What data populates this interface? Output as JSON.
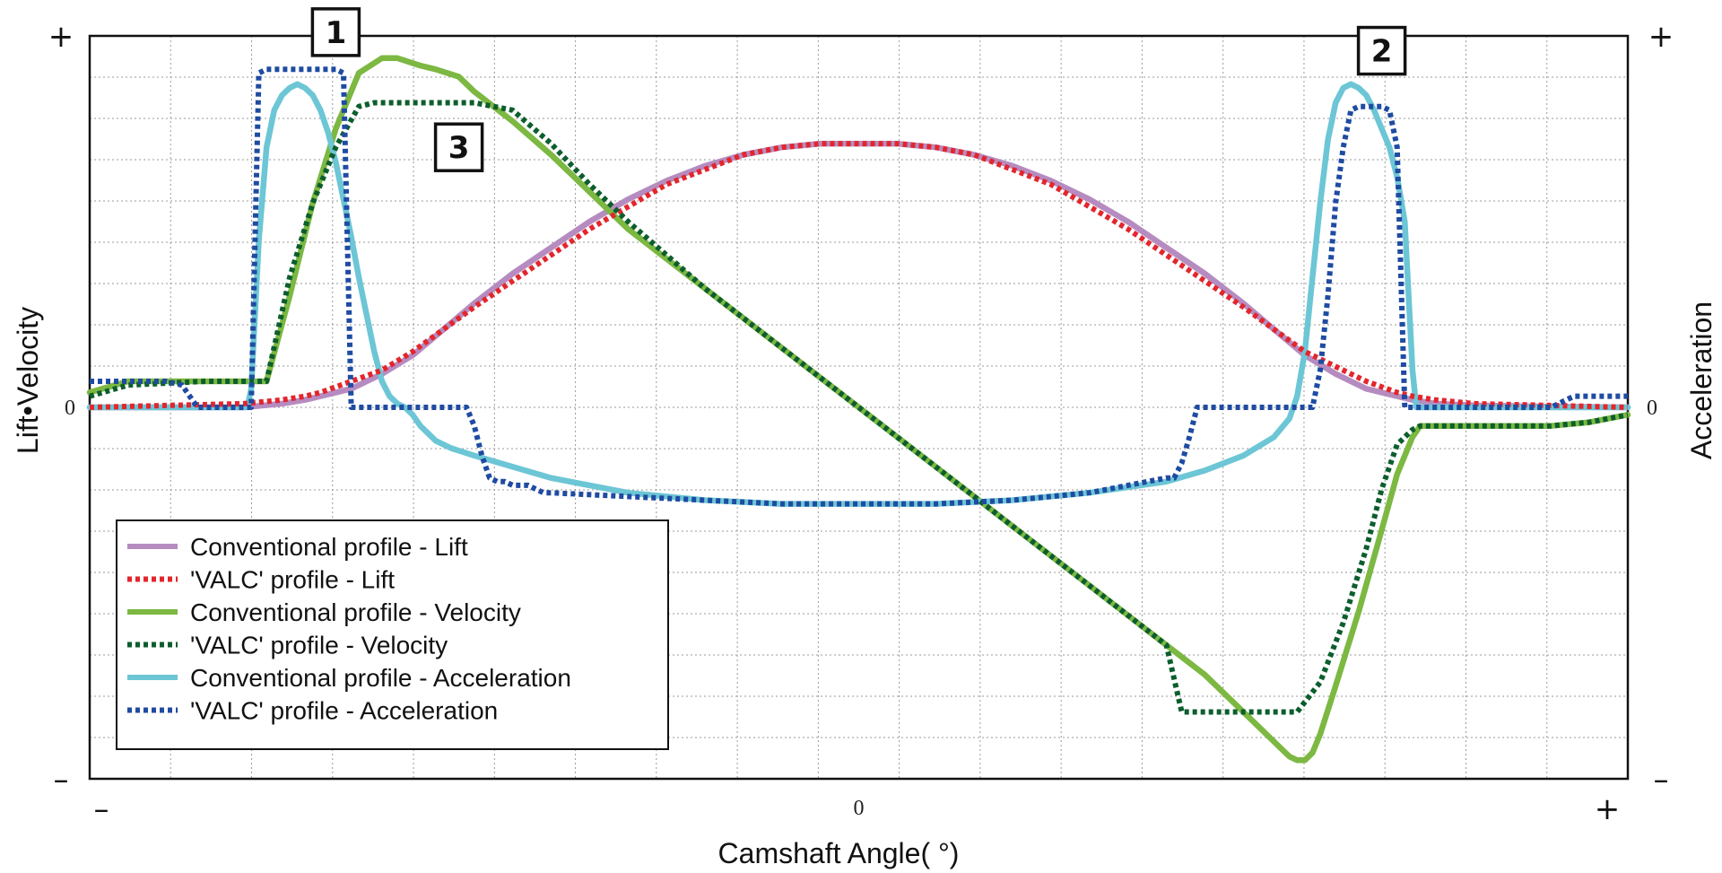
{
  "chart_data": {
    "type": "line",
    "title": "",
    "xlabel": "Camshaft Angle( °)",
    "ylabel_left": "Lift•Velocity",
    "ylabel_right": "Acceleration",
    "x_tick_labels": {
      "min": "–",
      "zero": "0",
      "max": "+"
    },
    "y_left_tick_labels": {
      "min": "–",
      "zero": "0",
      "max": "+"
    },
    "y_right_tick_labels": {
      "min": "–",
      "zero": "0",
      "max": "+"
    },
    "xlim": [
      -100,
      100
    ],
    "ylim": [
      -100,
      100
    ],
    "grid": true,
    "legend_position": "bottom-left",
    "markers": [
      {
        "label": "1",
        "x": -68,
        "y": 101
      },
      {
        "label": "2",
        "x": 68,
        "y": 96
      },
      {
        "label": "3",
        "x": -52,
        "y": 70
      }
    ],
    "series": [
      {
        "name": "Conventional profile - Lift",
        "color": "#b68cc0",
        "style": "solid",
        "x": [
          -100,
          -90,
          -80,
          -75,
          -72,
          -70,
          -66,
          -62,
          -58,
          -54,
          -50,
          -45,
          -40,
          -35,
          -30,
          -25,
          -20,
          -15,
          -10,
          -5,
          0,
          5,
          10,
          15,
          20,
          25,
          30,
          35,
          40,
          45,
          50,
          54,
          58,
          62,
          66,
          70,
          72,
          75,
          80,
          90,
          100
        ],
        "values": [
          0,
          0,
          0,
          1,
          2,
          3,
          5,
          9,
          14,
          21,
          28,
          36,
          43,
          50,
          56,
          61,
          65,
          68,
          70,
          71,
          71,
          71,
          70,
          68,
          65,
          61,
          56,
          50,
          43,
          36,
          28,
          21,
          14,
          9,
          5,
          3,
          2,
          1,
          0.5,
          0.2,
          0
        ]
      },
      {
        "name": "'VALC' profile - Lift",
        "color": "#e3262d",
        "style": "dotted",
        "x": [
          -100,
          -90,
          -80,
          -75,
          -72,
          -70,
          -66,
          -62,
          -58,
          -54,
          -50,
          -45,
          -40,
          -35,
          -30,
          -25,
          -20,
          -15,
          -10,
          -5,
          0,
          5,
          10,
          15,
          20,
          25,
          30,
          35,
          40,
          45,
          50,
          54,
          58,
          62,
          66,
          70,
          72,
          75,
          80,
          90,
          100
        ],
        "values": [
          0,
          0.5,
          1,
          2,
          3,
          4,
          7,
          10,
          15,
          21,
          27,
          34,
          41,
          48,
          54,
          60,
          64,
          68,
          70,
          71,
          71,
          71,
          70,
          68,
          64,
          60,
          54,
          48,
          41,
          34,
          27,
          21,
          15,
          11,
          7,
          4,
          3,
          2,
          1,
          0.5,
          0
        ]
      },
      {
        "name": "Conventional profile - Velocity",
        "color": "#7cb842",
        "style": "solid",
        "x": [
          -100,
          -95,
          -85,
          -80,
          -79,
          -77,
          -74,
          -71,
          -68,
          -65,
          -62,
          -60,
          -57,
          -55,
          -52,
          -50,
          -45,
          -40,
          -35,
          -30,
          -20,
          -10,
          0,
          10,
          20,
          30,
          40,
          45,
          50,
          53,
          55,
          56,
          57,
          58,
          59,
          60,
          62,
          65,
          68,
          70,
          72,
          73,
          74,
          75,
          77,
          80,
          85,
          90,
          95,
          100
        ],
        "values": [
          4,
          7,
          7,
          7,
          7,
          7,
          30,
          55,
          75,
          90,
          94,
          94,
          92,
          91,
          89,
          85,
          77,
          68,
          58,
          48,
          32,
          16,
          0,
          -16,
          -32,
          -48,
          -64,
          -72,
          -82,
          -88,
          -92,
          -94,
          -95,
          -95,
          -93,
          -88,
          -75,
          -55,
          -33,
          -18,
          -8,
          -5,
          -5,
          -5,
          -5,
          -5,
          -5,
          -5,
          -4,
          -2
        ]
      },
      {
        "name": "'VALC' profile - Velocity",
        "color": "#0c5e2d",
        "style": "dotted",
        "x": [
          -100,
          -95,
          -85,
          -80,
          -79,
          -77,
          -74,
          -71,
          -68,
          -65,
          -63,
          -60,
          -55,
          -50,
          -45,
          -40,
          -35,
          -30,
          -20,
          -10,
          0,
          10,
          20,
          30,
          40,
          42,
          50,
          55,
          57,
          60,
          63,
          66,
          68,
          70,
          72,
          73,
          75,
          80,
          85,
          90,
          95,
          100
        ],
        "values": [
          3,
          6,
          7,
          7,
          7,
          7,
          35,
          55,
          70,
          81,
          82,
          82,
          82,
          82,
          80,
          71,
          60,
          50,
          32,
          16,
          0,
          -16,
          -32,
          -48,
          -64,
          -82,
          -82,
          -82,
          -82,
          -74,
          -58,
          -38,
          -22,
          -10,
          -6,
          -5,
          -5,
          -5,
          -5,
          -5,
          -4,
          -2
        ]
      },
      {
        "name": "Conventional profile - Acceleration",
        "color": "#6cc6d5",
        "style": "solid",
        "x": [
          -100,
          -92,
          -85,
          -80,
          -79.5,
          -79,
          -78,
          -77,
          -76,
          -75,
          -74,
          -73,
          -72,
          -71,
          -70,
          -69,
          -68,
          -67,
          -66,
          -65,
          -64,
          -63,
          -62,
          -61,
          -60,
          -59,
          -58,
          -57,
          -56,
          -55,
          -53,
          -50,
          -45,
          -40,
          -30,
          -20,
          -10,
          0,
          10,
          20,
          30,
          40,
          45,
          50,
          54,
          56,
          57,
          58,
          59,
          60,
          61,
          62,
          63,
          64,
          65,
          66,
          67,
          68,
          69,
          70,
          71,
          72,
          72.5,
          73,
          74,
          76,
          80,
          85,
          92,
          100
        ],
        "values": [
          0,
          0,
          0,
          0,
          0,
          5,
          45,
          70,
          80,
          84,
          86,
          87,
          86,
          84,
          80,
          74,
          66,
          56,
          46,
          35,
          25,
          15,
          7,
          3,
          1,
          0,
          -2,
          -5,
          -7,
          -9,
          -11,
          -13,
          -16,
          -19,
          -23,
          -25,
          -26,
          -26,
          -26,
          -25,
          -23,
          -20,
          -17,
          -13,
          -8,
          -3,
          3,
          15,
          35,
          55,
          72,
          82,
          86,
          87,
          86,
          84,
          80,
          75,
          70,
          62,
          50,
          10,
          0,
          0,
          0,
          0,
          0,
          0,
          0,
          0
        ]
      },
      {
        "name": "'VALC' profile - Acceleration",
        "color": "#1f4ba2",
        "style": "dotted",
        "x": [
          -100,
          -90,
          -88,
          -86,
          -82,
          -80,
          -79,
          -78,
          -77,
          -76,
          -75,
          -74,
          -73,
          -72,
          -71,
          -70,
          -69,
          -68,
          -67,
          -66,
          -65,
          -64,
          -63,
          -62,
          -61,
          -60,
          -59,
          -58,
          -57,
          -56,
          -55,
          -54,
          -53,
          -52,
          -51,
          -50,
          -49,
          -48,
          -47,
          -46,
          -45,
          -44,
          -43,
          -42,
          -41,
          -40,
          -30,
          -20,
          -10,
          0,
          10,
          20,
          30,
          40,
          41,
          42,
          43,
          44,
          45,
          46,
          47,
          48,
          49,
          50,
          51,
          52,
          53,
          54,
          55,
          56,
          57,
          58,
          59,
          60,
          61,
          62,
          63,
          64,
          65,
          66,
          67,
          68,
          69,
          70,
          71,
          72,
          73,
          74,
          75,
          80,
          85,
          90,
          92,
          93,
          100
        ],
        "values": [
          7,
          7,
          6,
          0,
          0,
          0,
          0,
          90,
          91,
          91,
          91,
          91,
          91,
          91,
          91,
          91,
          91,
          91,
          90,
          0,
          0,
          0,
          0,
          0,
          0,
          0,
          0,
          0,
          0,
          0,
          0,
          0,
          0,
          0,
          0,
          -5,
          -13,
          -19,
          -20,
          -20,
          -21,
          -21,
          -21,
          -22,
          -23,
          -23,
          -24,
          -25,
          -26,
          -26,
          -26,
          -25,
          -23,
          -19,
          -19,
          -15,
          -8,
          0,
          0,
          0,
          0,
          0,
          0,
          0,
          0,
          0,
          0,
          0,
          0,
          0,
          0,
          0,
          0,
          10,
          30,
          55,
          70,
          80,
          81,
          81,
          81,
          81,
          80,
          70,
          0,
          0,
          0,
          0,
          0,
          0,
          0,
          0,
          2,
          3,
          3
        ]
      }
    ]
  }
}
